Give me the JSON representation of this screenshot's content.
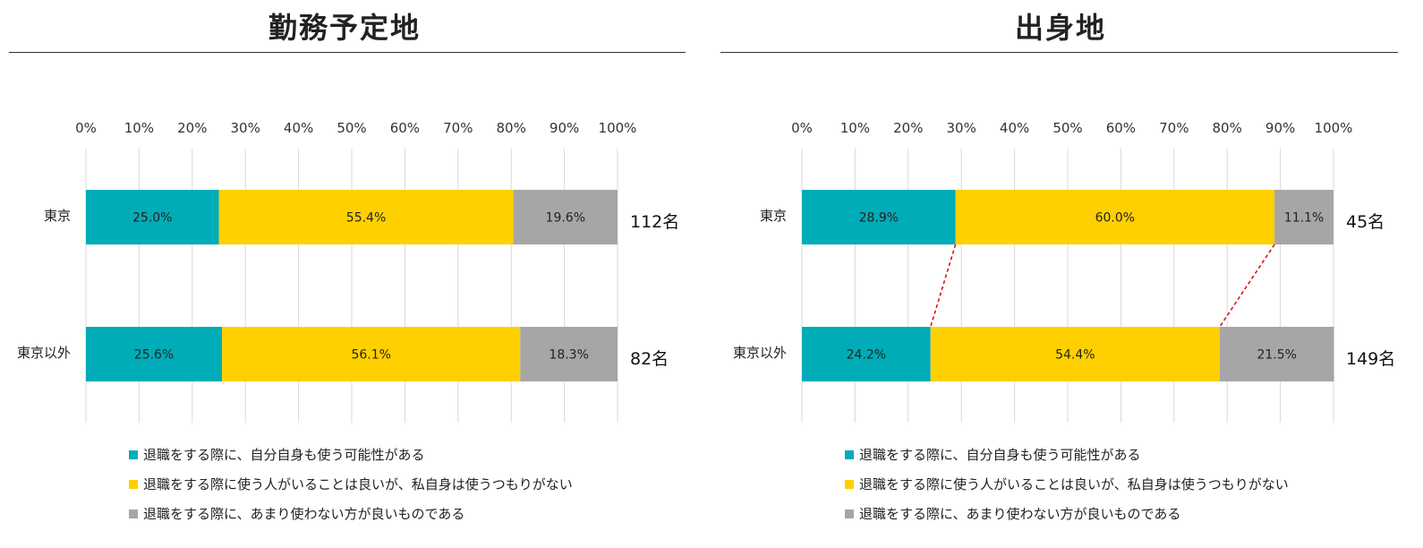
{
  "colors": {
    "teal": "#00acb7",
    "yellow": "#ffd000",
    "gray": "#a6a6a6",
    "grid": "#d9d9d9",
    "connector": "#e0101a"
  },
  "legend": [
    {
      "label": "退職をする際に、自分自身も使う可能性がある",
      "color": "#00acb7"
    },
    {
      "label": "退職をする際に使う人がいることは良いが、私自身は使うつもりがない",
      "color": "#ffd000"
    },
    {
      "label": "退職をする際に、あまり使わない方が良いものである",
      "color": "#a6a6a6"
    }
  ],
  "chart_data": [
    {
      "type": "bar",
      "orientation": "horizontal",
      "stacked": true,
      "title": "勤務予定地",
      "categories": [
        "東京",
        "東京以外"
      ],
      "series": [
        {
          "values": [
            25.0,
            25.6
          ],
          "labels": [
            "25.0%",
            "25.6%"
          ],
          "color": "#00acb7"
        },
        {
          "values": [
            55.4,
            56.1
          ],
          "labels": [
            "55.4%",
            "56.1%"
          ],
          "color": "#ffd000"
        },
        {
          "values": [
            19.6,
            18.3
          ],
          "labels": [
            "19.6%",
            "18.3%"
          ],
          "color": "#a6a6a6"
        }
      ],
      "counts": [
        "112名",
        "82名"
      ],
      "xlim": [
        0,
        100
      ],
      "xticks": [
        "0%",
        "10%",
        "20%",
        "30%",
        "40%",
        "50%",
        "60%",
        "70%",
        "80%",
        "90%",
        "100%"
      ],
      "grid": "vertical",
      "legend_position": "bottom"
    },
    {
      "type": "bar",
      "orientation": "horizontal",
      "stacked": true,
      "title": "出身地",
      "categories": [
        "東京",
        "東京以外"
      ],
      "series": [
        {
          "values": [
            28.9,
            24.2
          ],
          "labels": [
            "28.9%",
            "24.2%"
          ],
          "color": "#00acb7"
        },
        {
          "values": [
            60.0,
            54.4
          ],
          "labels": [
            "60.0%",
            "54.4%"
          ],
          "color": "#ffd000"
        },
        {
          "values": [
            11.1,
            21.5
          ],
          "labels": [
            "11.1%",
            "21.5%"
          ],
          "color": "#a6a6a6"
        }
      ],
      "counts": [
        "45名",
        "149名"
      ],
      "xlim": [
        0,
        100
      ],
      "xticks": [
        "0%",
        "10%",
        "20%",
        "30%",
        "40%",
        "50%",
        "60%",
        "70%",
        "80%",
        "90%",
        "100%"
      ],
      "grid": "vertical",
      "legend_position": "bottom",
      "connectors": "dashed-red"
    }
  ]
}
